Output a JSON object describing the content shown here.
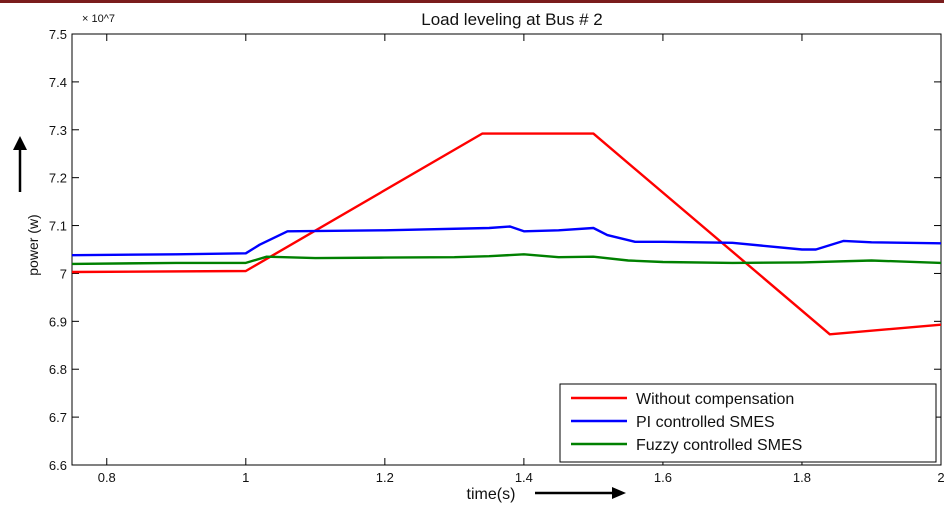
{
  "chart_data": {
    "type": "line",
    "title": "Load leveling at Bus  # 2",
    "xlabel": "time(s)",
    "ylabel": "power (w)",
    "y_multiplier": "× 10^7",
    "xlim": [
      0.75,
      2.0
    ],
    "ylim": [
      6.6,
      7.5
    ],
    "x_ticks": [
      0.8,
      1.0,
      1.2,
      1.4,
      1.6,
      1.8,
      2.0
    ],
    "x_tick_labels": [
      "0.8",
      "1",
      "1.2",
      "1.4",
      "1.6",
      "1.8",
      "2"
    ],
    "y_ticks": [
      6.6,
      6.7,
      6.8,
      6.9,
      7.0,
      7.1,
      7.2,
      7.3,
      7.4,
      7.5
    ],
    "y_tick_labels": [
      "6.6",
      "6.7",
      "6.8",
      "6.9",
      "7",
      "7.1",
      "7.2",
      "7.3",
      "7.4",
      "7.5"
    ],
    "grid": false,
    "legend_position": "bottom-right",
    "series": [
      {
        "name": "Without compensation",
        "color": "#ff0000",
        "x": [
          0.75,
          1.0,
          1.34,
          1.5,
          1.84,
          2.0
        ],
        "y": [
          7.003,
          7.005,
          7.292,
          7.292,
          6.873,
          6.893
        ]
      },
      {
        "name": "PI controlled SMES",
        "color": "#0000ff",
        "x": [
          0.75,
          0.9,
          1.0,
          1.02,
          1.06,
          1.2,
          1.35,
          1.38,
          1.4,
          1.45,
          1.5,
          1.52,
          1.56,
          1.6,
          1.7,
          1.8,
          1.82,
          1.86,
          1.9,
          2.0
        ],
        "y": [
          7.038,
          7.04,
          7.042,
          7.06,
          7.088,
          7.09,
          7.095,
          7.098,
          7.088,
          7.09,
          7.095,
          7.08,
          7.066,
          7.066,
          7.064,
          7.05,
          7.05,
          7.068,
          7.065,
          7.063
        ]
      },
      {
        "name": "Fuzzy controlled SMES",
        "color": "#008000",
        "x": [
          0.75,
          0.9,
          1.0,
          1.03,
          1.1,
          1.2,
          1.3,
          1.35,
          1.4,
          1.45,
          1.5,
          1.55,
          1.6,
          1.7,
          1.8,
          1.9,
          2.0
        ],
        "y": [
          7.02,
          7.022,
          7.022,
          7.035,
          7.032,
          7.033,
          7.034,
          7.036,
          7.04,
          7.034,
          7.035,
          7.027,
          7.024,
          7.022,
          7.023,
          7.027,
          7.022
        ]
      }
    ]
  }
}
